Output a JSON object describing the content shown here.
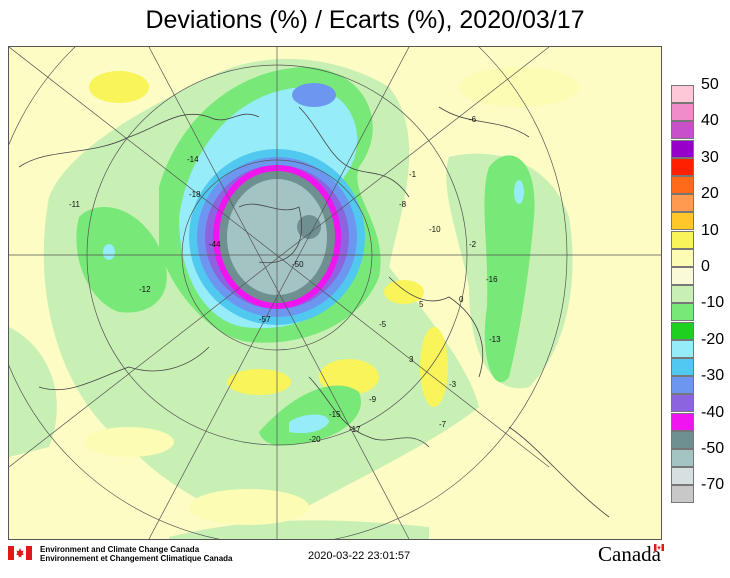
{
  "title": "Deviations (%) / Ecarts (%), 2020/03/17",
  "legend": {
    "labels": [
      "50",
      "40",
      "30",
      "20",
      "10",
      "0",
      "-10",
      "-20",
      "-30",
      "-40",
      "-50",
      "-70"
    ],
    "bins": [
      {
        "color": "#ffc8d8",
        "label": "50"
      },
      {
        "color": "#f08cc8",
        "label": ""
      },
      {
        "color": "#c850c8",
        "label": "40"
      },
      {
        "color": "#9600c8",
        "label": ""
      },
      {
        "color": "#ff2000",
        "label": "30"
      },
      {
        "color": "#ff6a1a",
        "label": ""
      },
      {
        "color": "#ff9a50",
        "label": "20"
      },
      {
        "color": "#ffc82a",
        "label": ""
      },
      {
        "color": "#f8f45a",
        "label": "10"
      },
      {
        "color": "#fcfcb4",
        "label": ""
      },
      {
        "color": "#fafad8",
        "label": "0"
      },
      {
        "color": "#c8f0b4",
        "label": ""
      },
      {
        "color": "#78e878",
        "label": "-10"
      },
      {
        "color": "#20d020",
        "label": ""
      },
      {
        "color": "#96ecf8",
        "label": "-20"
      },
      {
        "color": "#50c8f0",
        "label": ""
      },
      {
        "color": "#6c96f0",
        "label": "-30"
      },
      {
        "color": "#8c64e0",
        "label": ""
      },
      {
        "color": "#f014f0",
        "label": "-40"
      },
      {
        "color": "#6e9090",
        "label": ""
      },
      {
        "color": "#a4c4c4",
        "label": "-50"
      },
      {
        "color": "#d6e0e0",
        "label": ""
      },
      {
        "color": "#c8c8c8",
        "label": "-70"
      }
    ]
  },
  "map_labels": [
    "-50",
    "-57",
    "-44",
    "-14",
    "-18",
    "-12",
    "-15",
    "-8",
    "-10",
    "-5",
    "-3",
    "-6",
    "-1",
    "-2",
    "0",
    "-16",
    "-13",
    "3",
    "-17",
    "-20",
    "5",
    "-11",
    "-9",
    "-7"
  ],
  "footer": {
    "agency_en": "Environment and Climate Change Canada",
    "agency_fr": "Environnement et Changement Climatique Canada",
    "timestamp": "2020-03-22 23:01:57",
    "wordmark": "Canada"
  },
  "colors": {
    "background": "#fcfcc4",
    "yellow": "#f8f45a",
    "light_yellow": "#fcfcb4",
    "light_green": "#c8f0b4",
    "green": "#78e878",
    "dark_green": "#20d020",
    "light_cyan": "#96ecf8",
    "cyan": "#50c8f0",
    "blue": "#6c96f0",
    "violet": "#8c64e0",
    "magenta": "#f014f0",
    "dark_teal": "#6e9090",
    "teal": "#a4c4c4"
  }
}
